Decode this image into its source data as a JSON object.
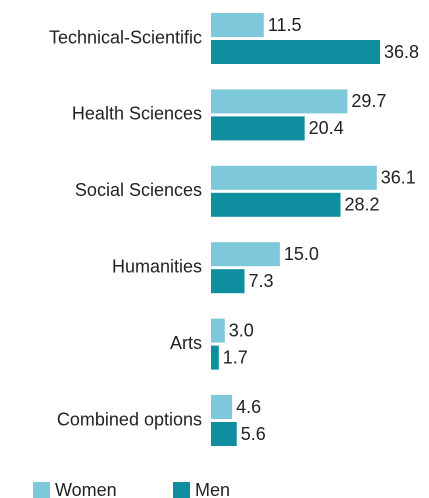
{
  "chart_data": {
    "type": "hbar",
    "categories": [
      "Technical-Scientific",
      "Health Sciences",
      "Social Sciences",
      "Humanities",
      "Arts",
      "Combined options"
    ],
    "series": [
      {
        "name": "Women",
        "color": "#7ec8dc",
        "values": [
          11.5,
          29.7,
          36.1,
          15.0,
          3.0,
          4.6
        ],
        "value_labels": [
          "11.5",
          "29.7",
          "36.1",
          "15.0",
          "3.0",
          "4.6"
        ]
      },
      {
        "name": "Men",
        "color": "#0f8ea0",
        "values": [
          36.8,
          20.4,
          28.2,
          7.3,
          1.7,
          5.6
        ],
        "value_labels": [
          "36.8",
          "20.4",
          "28.2",
          "7.3",
          "1.7",
          "5.6"
        ]
      }
    ],
    "legend": "bottom-left"
  }
}
